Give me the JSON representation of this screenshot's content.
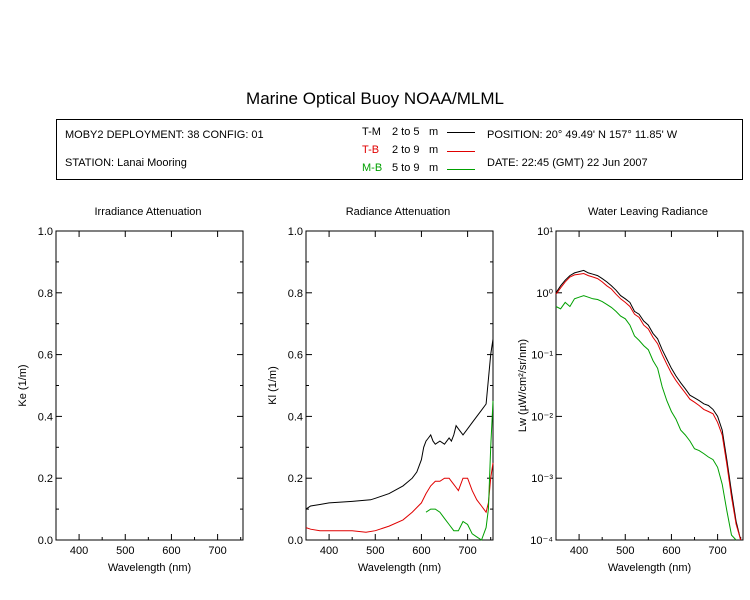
{
  "title": "Marine Optical Buoy NOAA/MLML",
  "info": {
    "deployment": "MOBY2 DEPLOYMENT: 38 CONFIG: 01",
    "station": "STATION: Lanai Mooring",
    "position": "POSITION: 20° 49.49' N   157° 11.85' W",
    "date": "DATE: 22:45 (GMT) 22 Jun 2007",
    "legend": [
      {
        "code": "T-M",
        "range": "2 to 5",
        "unit": "m",
        "color": "#000000"
      },
      {
        "code": "T-B",
        "range": "2 to 9",
        "unit": "m",
        "color": "#e00000"
      },
      {
        "code": "M-B",
        "range": "5 to 9",
        "unit": "m",
        "color": "#00a000"
      }
    ]
  },
  "chart_data": [
    {
      "type": "line",
      "title": "Irradiance Attenuation",
      "xlabel": "Wavelength (nm)",
      "ylabel": "Ke  (1/m)",
      "xlim": [
        350,
        755
      ],
      "ylim": [
        0,
        1.0
      ],
      "xticks": [
        "400",
        "500",
        "600",
        "700"
      ],
      "yticks": [
        "0.0",
        "0.2",
        "0.4",
        "0.6",
        "0.8",
        "1.0"
      ],
      "series": []
    },
    {
      "type": "line",
      "title": "Radiance Attenuation",
      "xlabel": "Wavelength (nm)",
      "ylabel": "Kl  (1/m)",
      "xlim": [
        350,
        755
      ],
      "ylim": [
        0,
        1.0
      ],
      "xticks": [
        "400",
        "500",
        "600",
        "700"
      ],
      "yticks": [
        "0.0",
        "0.2",
        "0.4",
        "0.6",
        "0.8",
        "1.0"
      ],
      "series": [
        {
          "name": "T-M",
          "color": "#000000",
          "x": [
            350,
            360,
            380,
            400,
            450,
            490,
            500,
            530,
            560,
            580,
            590,
            600,
            605,
            610,
            615,
            620,
            625,
            630,
            640,
            650,
            660,
            665,
            670,
            675,
            680,
            690,
            700,
            710,
            720,
            730,
            740,
            745,
            750,
            755
          ],
          "y": [
            0.1,
            0.11,
            0.115,
            0.12,
            0.125,
            0.13,
            0.135,
            0.15,
            0.175,
            0.2,
            0.22,
            0.26,
            0.3,
            0.32,
            0.33,
            0.34,
            0.32,
            0.31,
            0.32,
            0.31,
            0.33,
            0.32,
            0.34,
            0.37,
            0.36,
            0.34,
            0.36,
            0.38,
            0.4,
            0.42,
            0.44,
            0.52,
            0.6,
            0.65
          ]
        },
        {
          "name": "T-B",
          "color": "#e00000",
          "x": [
            350,
            360,
            380,
            400,
            450,
            480,
            500,
            530,
            560,
            580,
            600,
            610,
            620,
            630,
            640,
            650,
            660,
            665,
            670,
            675,
            680,
            690,
            700,
            710,
            720,
            730,
            740,
            745,
            750,
            755
          ],
          "y": [
            0.04,
            0.035,
            0.03,
            0.03,
            0.03,
            0.025,
            0.03,
            0.045,
            0.065,
            0.09,
            0.12,
            0.15,
            0.175,
            0.19,
            0.19,
            0.2,
            0.2,
            0.19,
            0.18,
            0.17,
            0.16,
            0.2,
            0.2,
            0.16,
            0.13,
            0.11,
            0.09,
            0.12,
            0.2,
            0.25
          ]
        },
        {
          "name": "M-B",
          "color": "#00a000",
          "x": [
            610,
            620,
            630,
            640,
            650,
            660,
            670,
            680,
            690,
            700,
            710,
            720,
            730,
            740,
            745,
            750,
            755
          ],
          "y": [
            0.09,
            0.1,
            0.1,
            0.09,
            0.07,
            0.05,
            0.03,
            0.03,
            0.06,
            0.05,
            0.02,
            0.01,
            0.0,
            0.04,
            0.1,
            0.3,
            0.45
          ]
        }
      ]
    },
    {
      "type": "line",
      "title": "Water Leaving Radiance",
      "xlabel": "Wavelength (nm)",
      "ylabel": "Lw  (µW/cm²/sr/nm)",
      "xlim": [
        350,
        755
      ],
      "ylim": [
        0.0001,
        10
      ],
      "yscale": "log",
      "xticks": [
        "400",
        "500",
        "600",
        "700"
      ],
      "yticks": [
        "10⁻⁴",
        "10⁻³",
        "10⁻²",
        "10⁻¹",
        "10⁰",
        "10¹"
      ],
      "series": [
        {
          "name": "T-M",
          "color": "#000000",
          "x": [
            350,
            360,
            370,
            380,
            390,
            400,
            410,
            420,
            430,
            440,
            450,
            460,
            470,
            480,
            490,
            500,
            510,
            520,
            530,
            540,
            550,
            560,
            570,
            580,
            590,
            600,
            610,
            620,
            630,
            640,
            650,
            660,
            670,
            680,
            690,
            700,
            710,
            720,
            730,
            740,
            750
          ],
          "y": [
            1.0,
            1.3,
            1.6,
            1.9,
            2.1,
            2.2,
            2.3,
            2.1,
            2.0,
            1.9,
            1.7,
            1.5,
            1.3,
            1.1,
            0.9,
            0.8,
            0.7,
            0.5,
            0.45,
            0.35,
            0.3,
            0.22,
            0.18,
            0.12,
            0.085,
            0.06,
            0.045,
            0.035,
            0.028,
            0.022,
            0.02,
            0.018,
            0.016,
            0.015,
            0.013,
            0.01,
            0.006,
            0.002,
            0.0006,
            0.0002,
            0.0001
          ]
        },
        {
          "name": "T-B",
          "color": "#e00000",
          "x": [
            350,
            360,
            370,
            380,
            390,
            400,
            410,
            420,
            430,
            440,
            450,
            460,
            470,
            480,
            490,
            500,
            510,
            520,
            530,
            540,
            550,
            560,
            570,
            580,
            590,
            600,
            610,
            620,
            630,
            640,
            650,
            660,
            670,
            680,
            690,
            700,
            710,
            720,
            730,
            740,
            750
          ],
          "y": [
            0.95,
            1.2,
            1.5,
            1.8,
            1.95,
            2.0,
            2.05,
            1.9,
            1.8,
            1.7,
            1.5,
            1.3,
            1.15,
            0.95,
            0.8,
            0.7,
            0.6,
            0.45,
            0.4,
            0.3,
            0.26,
            0.19,
            0.15,
            0.1,
            0.07,
            0.05,
            0.038,
            0.03,
            0.024,
            0.019,
            0.017,
            0.015,
            0.013,
            0.012,
            0.011,
            0.008,
            0.005,
            0.0017,
            0.0005,
            0.00018,
            0.0001
          ]
        },
        {
          "name": "M-B",
          "color": "#00a000",
          "x": [
            350,
            360,
            370,
            380,
            390,
            400,
            410,
            420,
            430,
            440,
            450,
            460,
            470,
            480,
            490,
            500,
            510,
            520,
            530,
            540,
            550,
            560,
            570,
            580,
            590,
            600,
            610,
            620,
            630,
            640,
            650,
            660,
            670,
            680,
            690,
            700,
            710,
            720,
            730,
            740
          ],
          "y": [
            0.6,
            0.55,
            0.7,
            0.6,
            0.8,
            0.85,
            0.9,
            0.85,
            0.8,
            0.78,
            0.72,
            0.65,
            0.58,
            0.5,
            0.42,
            0.38,
            0.3,
            0.2,
            0.17,
            0.14,
            0.12,
            0.08,
            0.06,
            0.03,
            0.018,
            0.012,
            0.009,
            0.006,
            0.005,
            0.004,
            0.003,
            0.0028,
            0.0025,
            0.0022,
            0.002,
            0.0015,
            0.0008,
            0.0003,
            0.00012,
            0.0001
          ]
        }
      ]
    }
  ]
}
